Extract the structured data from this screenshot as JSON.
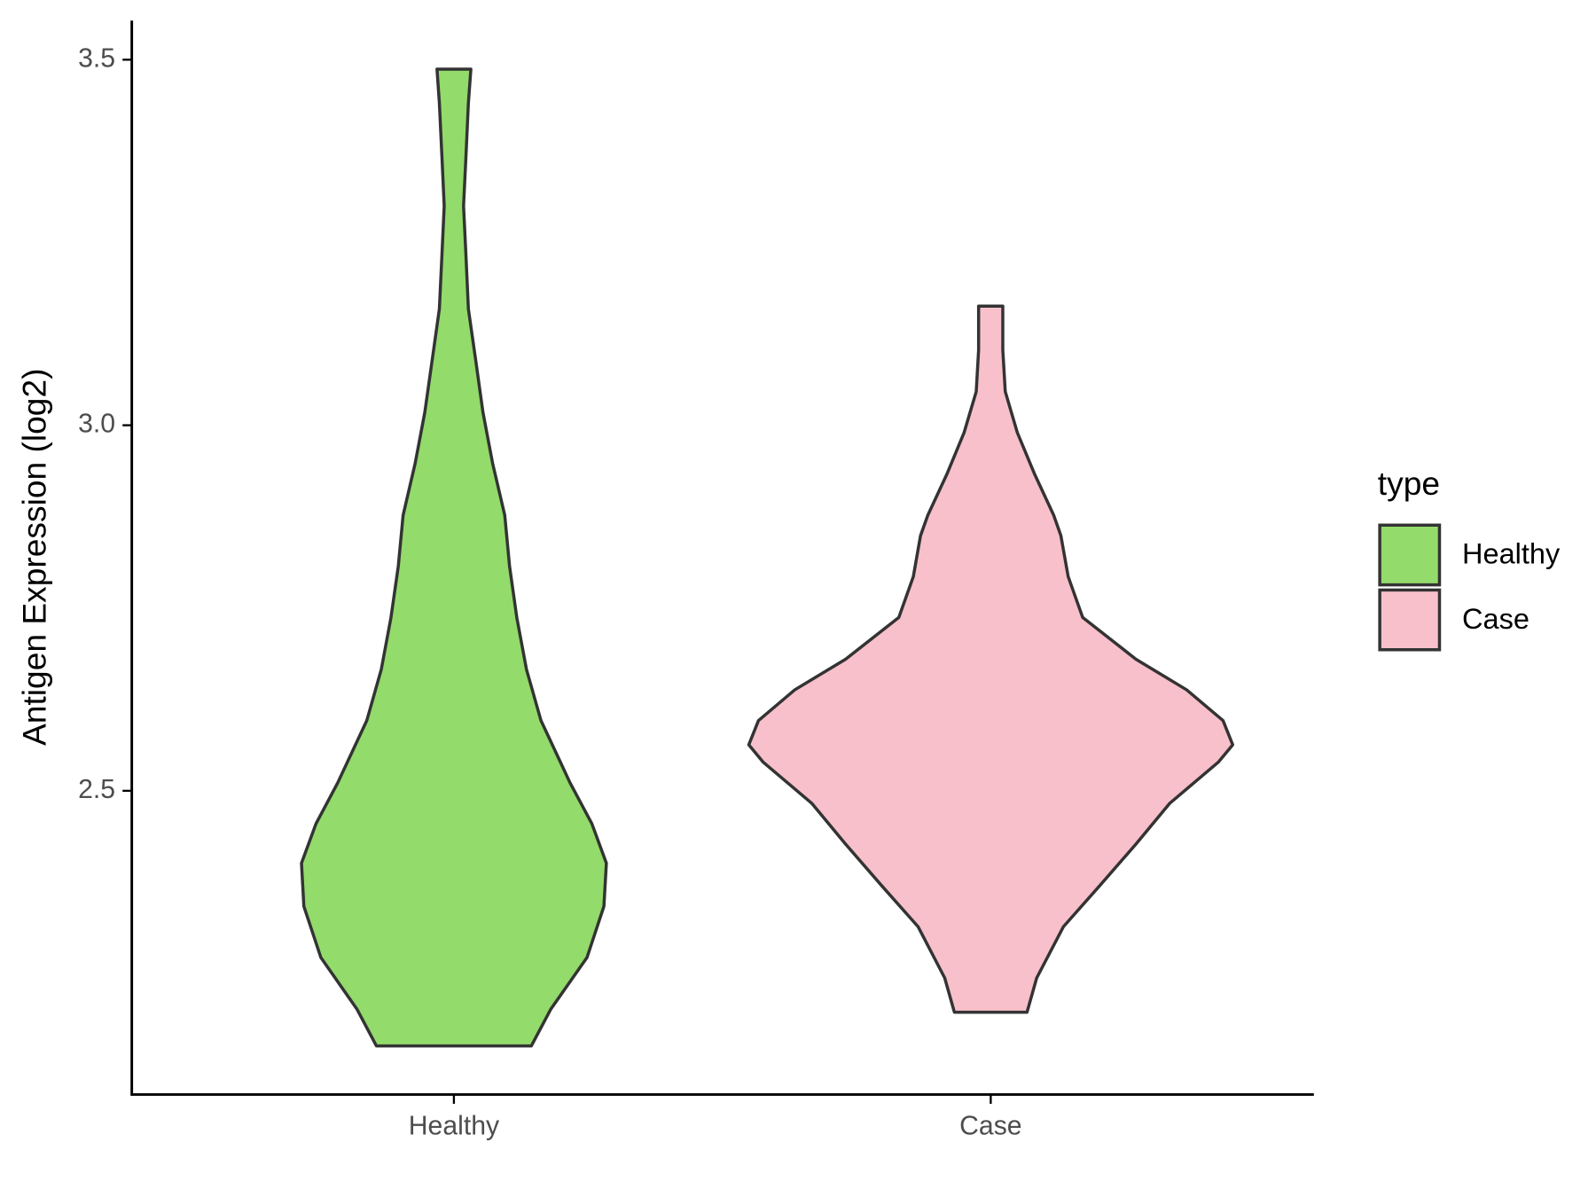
{
  "chart_data": {
    "type": "violin",
    "y_label": "Antigen Expression (log2)",
    "categories": [
      "Healthy",
      "Case"
    ],
    "legend_title": "type",
    "series": [
      {
        "name": "Healthy",
        "color": "#93DB6B",
        "y": [
          2.151,
          2.201,
          2.272,
          2.342,
          2.401,
          2.455,
          2.511,
          2.596,
          2.666,
          2.737,
          2.807,
          2.877,
          2.948,
          3.018,
          3.089,
          3.159,
          3.23,
          3.3,
          3.37,
          3.441,
          3.487
        ],
        "width": [
          0.32,
          0.4,
          0.55,
          0.62,
          0.63,
          0.57,
          0.48,
          0.36,
          0.3,
          0.26,
          0.23,
          0.21,
          0.16,
          0.12,
          0.09,
          0.06,
          0.05,
          0.04,
          0.05,
          0.06,
          0.07
        ]
      },
      {
        "name": "Case",
        "color": "#F8C0CB",
        "y": [
          2.197,
          2.244,
          2.314,
          2.37,
          2.427,
          2.483,
          2.539,
          2.563,
          2.596,
          2.638,
          2.68,
          2.737,
          2.793,
          2.849,
          2.877,
          2.934,
          2.99,
          3.046,
          3.103,
          3.163
        ],
        "width": [
          0.15,
          0.19,
          0.3,
          0.45,
          0.6,
          0.74,
          0.94,
          1.0,
          0.96,
          0.81,
          0.6,
          0.38,
          0.32,
          0.29,
          0.26,
          0.18,
          0.11,
          0.06,
          0.05,
          0.05
        ]
      }
    ],
    "ylim": [
      2.0845,
      3.5535
    ],
    "yticks": [
      2.5,
      {
        "value": 3,
        "label": "3.0"
      },
      3.5
    ]
  }
}
